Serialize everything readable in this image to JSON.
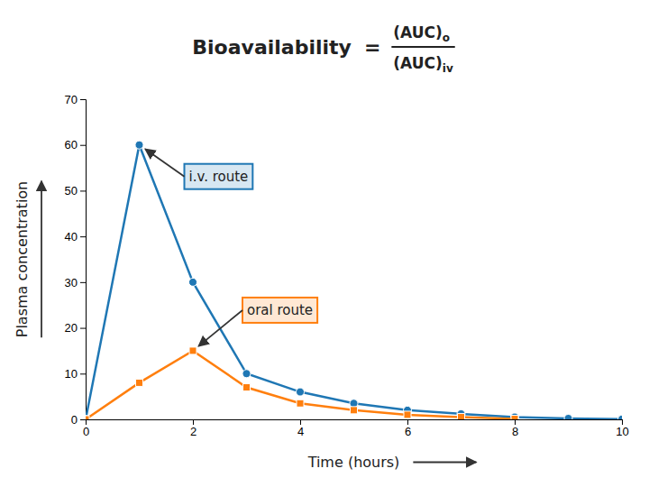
{
  "chart_data": {
    "type": "line",
    "title": "Bioavailability",
    "annotations": [
      {
        "text": "="
      },
      {
        "text": "(AUC)",
        "subscript": "o"
      },
      {
        "text": "(AUC)",
        "subscript": "iv"
      }
    ],
    "xlabel": "Time (hours)",
    "ylabel": "Plasma concentration",
    "xlim": [
      0,
      10
    ],
    "ylim": [
      0,
      70
    ],
    "xticks": [
      0,
      2,
      4,
      6,
      8,
      10
    ],
    "yticks": [
      0,
      10,
      20,
      30,
      40,
      50,
      60,
      70
    ],
    "grid": false,
    "series": [
      {
        "name": "i.v. route",
        "x": [
          0,
          1,
          2,
          3,
          4,
          5,
          6,
          7,
          8,
          9,
          10
        ],
        "values": [
          0,
          60,
          30,
          10,
          6,
          3.5,
          2,
          1.2,
          0.5,
          0.2,
          0.05
        ],
        "marker": "circle",
        "line_style": "solid"
      },
      {
        "name": "oral route",
        "x": [
          0,
          1,
          2,
          3,
          4,
          5,
          6,
          7,
          8
        ],
        "values": [
          0,
          8,
          15,
          7,
          3.5,
          2,
          1,
          0.5,
          0.1
        ],
        "marker": "square",
        "line_style": "solid"
      }
    ]
  }
}
